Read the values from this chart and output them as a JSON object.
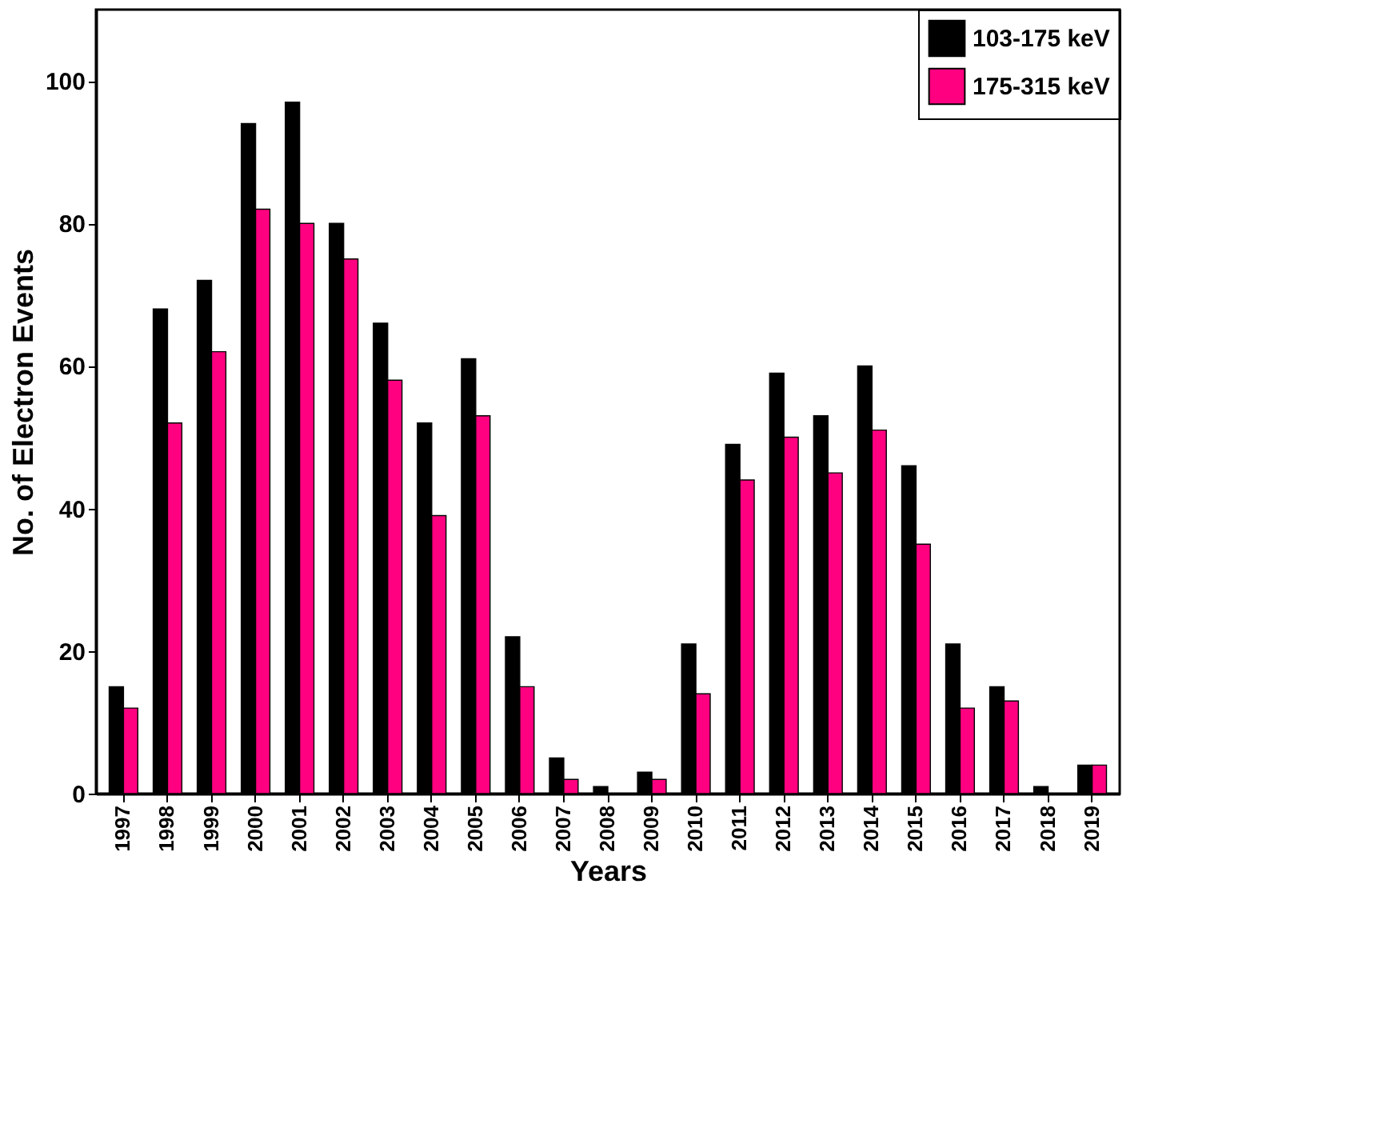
{
  "chart_data": {
    "type": "bar",
    "xlabel": "Years",
    "ylabel": "No. of Electron Events",
    "categories": [
      "1997",
      "1998",
      "1999",
      "2000",
      "2001",
      "2002",
      "2003",
      "2004",
      "2005",
      "2006",
      "2007",
      "2008",
      "2009",
      "2010",
      "2011",
      "2012",
      "2013",
      "2014",
      "2015",
      "2016",
      "2017",
      "2018",
      "2019"
    ],
    "series": [
      {
        "name": "103-175 keV",
        "color": "#000000",
        "values": [
          15,
          68,
          72,
          94,
          97,
          80,
          66,
          52,
          61,
          22,
          5,
          1,
          3,
          21,
          49,
          59,
          53,
          60,
          46,
          21,
          15,
          1,
          4
        ]
      },
      {
        "name": "175-315 keV",
        "color": "#ff0080",
        "values": [
          12,
          52,
          62,
          82,
          80,
          75,
          58,
          39,
          53,
          15,
          2,
          0,
          2,
          14,
          44,
          50,
          45,
          51,
          35,
          12,
          13,
          0,
          4
        ]
      }
    ],
    "ylim": [
      0,
      110
    ],
    "yticks": [
      0,
      20,
      40,
      60,
      80,
      100
    ],
    "grid": false,
    "legend": "top right"
  }
}
